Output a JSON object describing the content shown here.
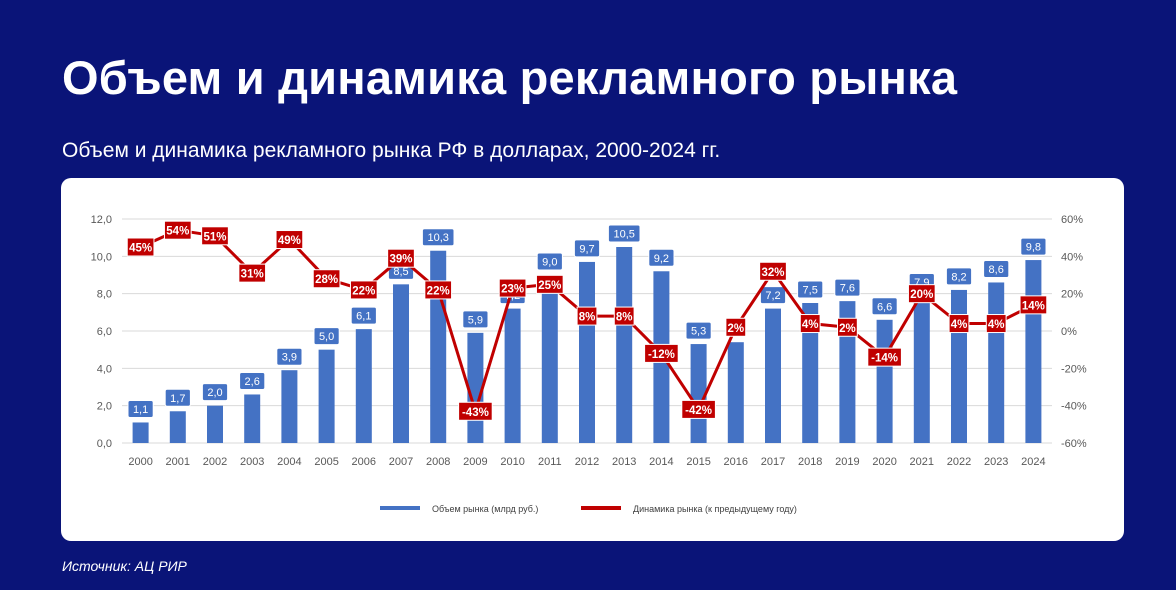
{
  "page": {
    "title": "Объем и динамика рекламного рынка",
    "subtitle": "Объем и динамика рекламного рынка РФ в долларах, 2000-2024 гг.",
    "source": "Источник: АЦ РИР"
  },
  "colors": {
    "background": "#0a1478",
    "bar": "#4472c4",
    "line": "#c00000",
    "card": "#ffffff"
  },
  "chart_data": {
    "type": "bar",
    "categories": [
      "2000",
      "2001",
      "2002",
      "2003",
      "2004",
      "2005",
      "2006",
      "2007",
      "2008",
      "2009",
      "2010",
      "2011",
      "2012",
      "2013",
      "2014",
      "2015",
      "2016",
      "2017",
      "2018",
      "2019",
      "2020",
      "2021",
      "2022",
      "2023",
      "2024"
    ],
    "series": [
      {
        "name": "Объем рынка (млрд руб.)",
        "type": "bar",
        "axis": "left",
        "values": [
          1.1,
          1.7,
          2.0,
          2.6,
          3.9,
          5.0,
          6.1,
          8.5,
          10.3,
          5.9,
          7.2,
          9.0,
          9.7,
          10.5,
          9.2,
          5.3,
          5.4,
          7.2,
          7.5,
          7.6,
          6.6,
          7.9,
          8.2,
          8.6,
          9.8
        ],
        "labels": [
          "1,1",
          "1,7",
          "2,0",
          "2,6",
          "3,9",
          "5,0",
          "6,1",
          "8,5",
          "10,3",
          "5,9",
          "7,2",
          "9,0",
          "9,7",
          "10,5",
          "9,2",
          "5,3",
          "",
          "7,2",
          "7,5",
          "7,6",
          "6,6",
          "7,9",
          "8,2",
          "8,6",
          "9,8"
        ]
      },
      {
        "name": "Динамика рынка (к предыдущему году)",
        "type": "line",
        "axis": "right",
        "values": [
          45,
          54,
          51,
          31,
          49,
          28,
          22,
          39,
          22,
          -43,
          23,
          25,
          8,
          8,
          -12,
          -42,
          2,
          32,
          4,
          2,
          -14,
          20,
          4,
          4,
          14
        ],
        "labels": [
          "45%",
          "54%",
          "51%",
          "31%",
          "49%",
          "28%",
          "22%",
          "39%",
          "22%",
          "-43%",
          "23%",
          "25%",
          "8%",
          "8%",
          "-12%",
          "-42%",
          "2%",
          "32%",
          "4%",
          "2%",
          "-14%",
          "20%",
          "4%",
          "4%",
          "14%"
        ]
      }
    ],
    "y_left": {
      "ylim": [
        0,
        12
      ],
      "ticks": [
        "0,0",
        "2,0",
        "4,0",
        "6,0",
        "8,0",
        "10,0",
        "12,0"
      ]
    },
    "y_right": {
      "ylim": [
        -60,
        60
      ],
      "ticks": [
        "-60%",
        "-40%",
        "-20%",
        "0%",
        "20%",
        "40%",
        "60%"
      ]
    },
    "grid": true,
    "legend": "bottom"
  }
}
